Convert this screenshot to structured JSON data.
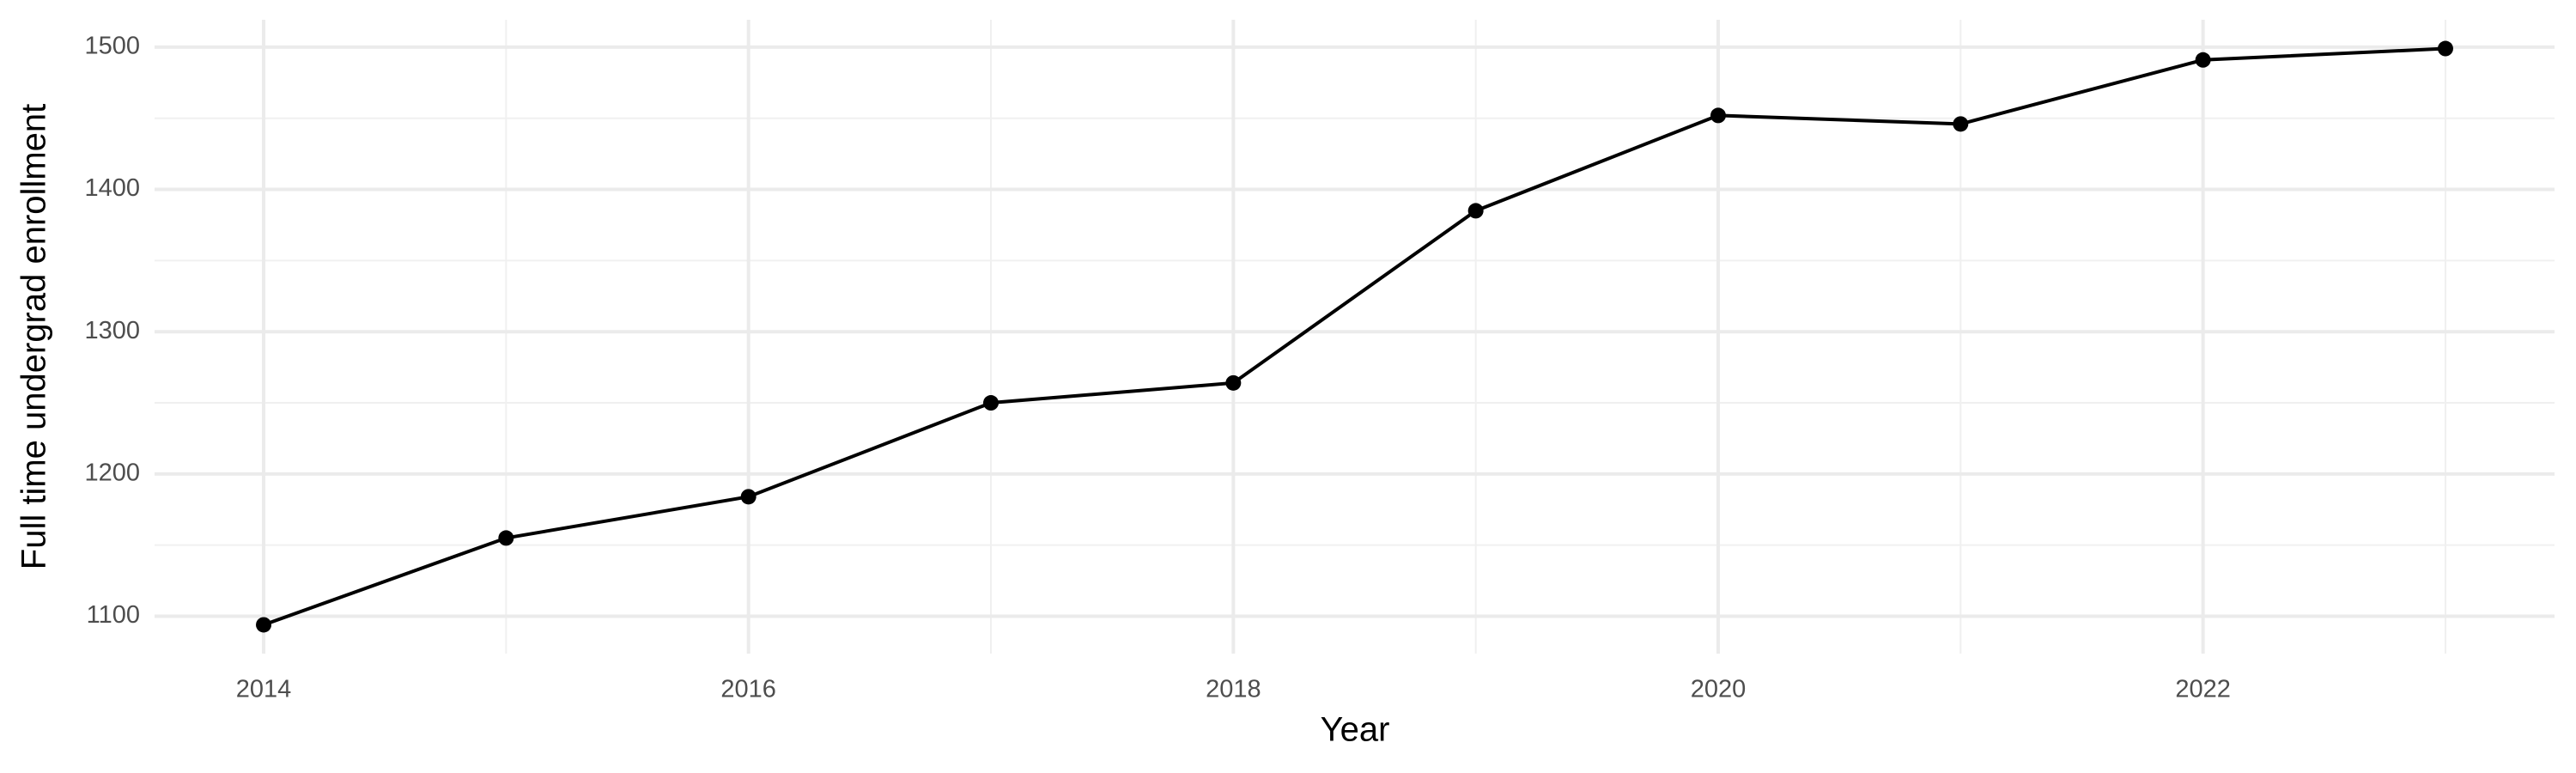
{
  "chart_data": {
    "type": "line",
    "x_label": "Year",
    "y_label": "Full time undergrad enrollment",
    "x": [
      2014,
      2015,
      2016,
      2017,
      2018,
      2019,
      2020,
      2021,
      2022,
      2023
    ],
    "series": [
      {
        "name": "Full time undergrad enrollment",
        "color": "#000000",
        "values": [
          1094,
          1155,
          1184,
          1250,
          1264,
          1385,
          1452,
          1446,
          1491,
          1499
        ]
      }
    ],
    "xlim": [
      2013.55,
      2023.45
    ],
    "xticks": [
      2014,
      2016,
      2018,
      2020,
      2022
    ],
    "xticks_minor": [
      2015,
      2017,
      2019,
      2021,
      2023
    ],
    "ylim": [
      1073.75,
      1519.25
    ],
    "yticks": [
      1100,
      1200,
      1300,
      1400,
      1500
    ],
    "yticks_minor": [
      1150,
      1250,
      1350,
      1450
    ],
    "grid": true,
    "markers": true
  }
}
